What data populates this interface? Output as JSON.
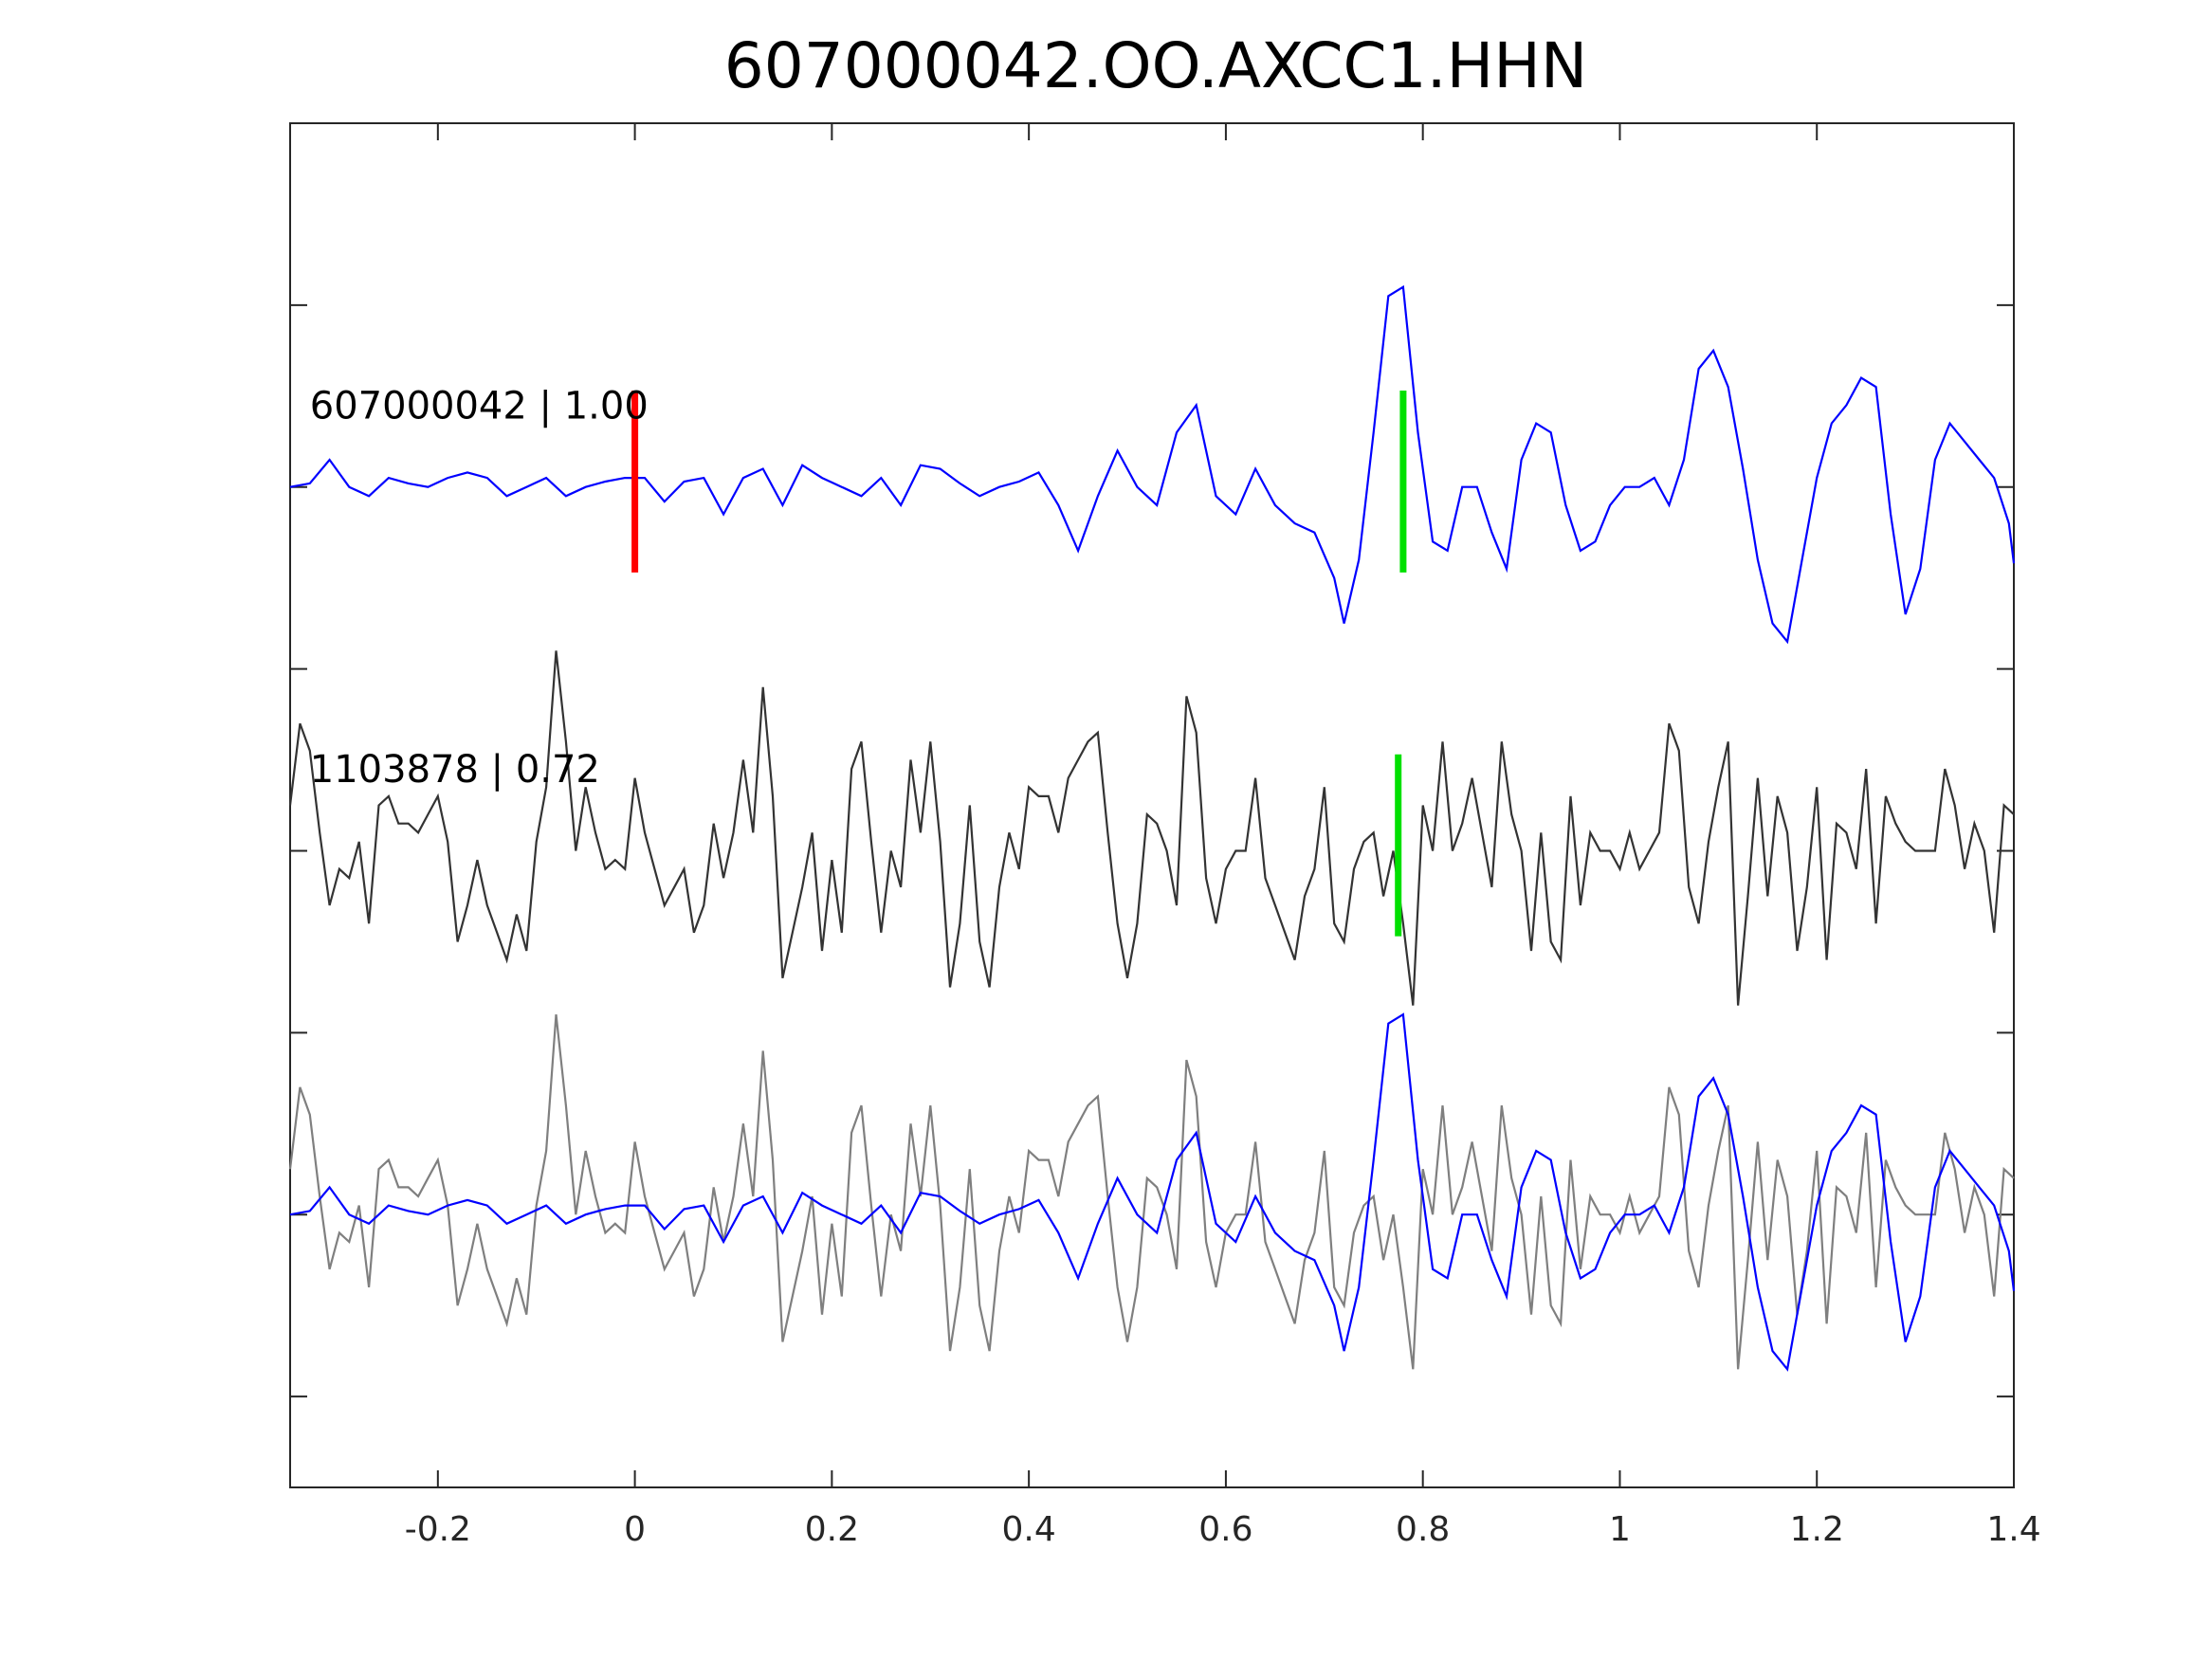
{
  "chart_data": {
    "type": "line",
    "title": "607000042.OO.AXCC1.HHN",
    "xlabel": "",
    "ylabel": "",
    "xlim": [
      -0.35,
      1.4
    ],
    "ylim": [
      0,
      7.5
    ],
    "x_ticks": [
      -0.2,
      0,
      0.2,
      0.4,
      0.6,
      0.8,
      1,
      1.2,
      1.4
    ],
    "x_tick_labels": [
      "-0.2",
      "0",
      "0.2",
      "0.4",
      "0.6",
      "0.8",
      "1",
      "1.2",
      "1.4"
    ],
    "y_ticks": [
      0.5,
      1.5,
      2.5,
      3.5,
      4.5,
      5.5,
      6.5
    ],
    "grid": false,
    "colors": {
      "template": "#0000ff",
      "neighbor": "#333333",
      "overlay_gray": "#7f7f7f",
      "pick_p": "#ff0000",
      "pick_s": "#00e000"
    },
    "trace_labels": [
      {
        "text": "607000042 | 1.00",
        "x": -0.33,
        "y": 5.95
      },
      {
        "text": "1103878 | 0.72",
        "x": -0.33,
        "y": 3.95
      }
    ],
    "picks": [
      {
        "x": 0.0,
        "y_from": 5.03,
        "y_to": 6.03,
        "color": "#ff0000"
      },
      {
        "x": 0.78,
        "y_from": 5.03,
        "y_to": 6.03,
        "color": "#00e000"
      },
      {
        "x": 0.775,
        "y_from": 3.03,
        "y_to": 4.03,
        "color": "#00e000"
      }
    ],
    "series": [
      {
        "role": "template",
        "baseline": 5.5,
        "color": "#0000ff",
        "points": [
          [
            -0.35,
            0
          ],
          [
            -0.33,
            0.02
          ],
          [
            -0.31,
            0.15
          ],
          [
            -0.29,
            0
          ],
          [
            -0.27,
            -0.05
          ],
          [
            -0.25,
            0.05
          ],
          [
            -0.23,
            0.02
          ],
          [
            -0.21,
            0.0
          ],
          [
            -0.19,
            0.05
          ],
          [
            -0.17,
            0.08
          ],
          [
            -0.15,
            0.05
          ],
          [
            -0.13,
            -0.05
          ],
          [
            -0.11,
            0.0
          ],
          [
            -0.09,
            0.05
          ],
          [
            -0.07,
            -0.05
          ],
          [
            -0.05,
            0.0
          ],
          [
            -0.03,
            0.03
          ],
          [
            -0.01,
            0.05
          ],
          [
            0.01,
            0.05
          ],
          [
            0.03,
            -0.08
          ],
          [
            0.05,
            0.03
          ],
          [
            0.07,
            0.05
          ],
          [
            0.09,
            -0.15
          ],
          [
            0.11,
            0.05
          ],
          [
            0.13,
            0.1
          ],
          [
            0.15,
            -0.1
          ],
          [
            0.17,
            0.12
          ],
          [
            0.19,
            0.05
          ],
          [
            0.21,
            0.0
          ],
          [
            0.23,
            -0.05
          ],
          [
            0.25,
            0.05
          ],
          [
            0.27,
            -0.1
          ],
          [
            0.29,
            0.12
          ],
          [
            0.31,
            0.1
          ],
          [
            0.33,
            0.02
          ],
          [
            0.35,
            -0.05
          ],
          [
            0.37,
            0.0
          ],
          [
            0.39,
            0.03
          ],
          [
            0.41,
            0.08
          ],
          [
            0.43,
            -0.1
          ],
          [
            0.45,
            -0.35
          ],
          [
            0.47,
            -0.05
          ],
          [
            0.49,
            0.2
          ],
          [
            0.51,
            0.0
          ],
          [
            0.53,
            -0.1
          ],
          [
            0.55,
            0.3
          ],
          [
            0.57,
            0.45
          ],
          [
            0.59,
            -0.05
          ],
          [
            0.61,
            -0.15
          ],
          [
            0.63,
            0.1
          ],
          [
            0.65,
            -0.1
          ],
          [
            0.67,
            -0.2
          ],
          [
            0.69,
            -0.25
          ],
          [
            0.71,
            -0.5
          ],
          [
            0.72,
            -0.75
          ],
          [
            0.735,
            -0.4
          ],
          [
            0.75,
            0.3
          ],
          [
            0.765,
            1.05
          ],
          [
            0.78,
            1.1
          ],
          [
            0.795,
            0.3
          ],
          [
            0.81,
            -0.3
          ],
          [
            0.825,
            -0.35
          ],
          [
            0.84,
            0.0
          ],
          [
            0.855,
            0.0
          ],
          [
            0.87,
            -0.25
          ],
          [
            0.885,
            -0.45
          ],
          [
            0.9,
            0.15
          ],
          [
            0.915,
            0.35
          ],
          [
            0.93,
            0.3
          ],
          [
            0.945,
            -0.1
          ],
          [
            0.96,
            -0.35
          ],
          [
            0.975,
            -0.3
          ],
          [
            0.99,
            -0.1
          ],
          [
            1.005,
            0.0
          ],
          [
            1.02,
            0.0
          ],
          [
            1.035,
            0.05
          ],
          [
            1.05,
            -0.1
          ],
          [
            1.065,
            0.15
          ],
          [
            1.08,
            0.65
          ],
          [
            1.095,
            0.75
          ],
          [
            1.11,
            0.55
          ],
          [
            1.125,
            0.1
          ],
          [
            1.14,
            -0.4
          ],
          [
            1.155,
            -0.75
          ],
          [
            1.17,
            -0.85
          ],
          [
            1.185,
            -0.4
          ],
          [
            1.2,
            0.05
          ],
          [
            1.215,
            0.35
          ],
          [
            1.23,
            0.45
          ],
          [
            1.245,
            0.6
          ],
          [
            1.26,
            0.55
          ],
          [
            1.275,
            -0.15
          ],
          [
            1.29,
            -0.7
          ],
          [
            1.305,
            -0.45
          ],
          [
            1.32,
            0.15
          ],
          [
            1.335,
            0.35
          ],
          [
            1.35,
            0.25
          ],
          [
            1.365,
            0.15
          ],
          [
            1.38,
            0.05
          ],
          [
            1.395,
            -0.2
          ],
          [
            1.4,
            -0.42
          ]
        ]
      },
      {
        "role": "neighbor",
        "baseline": 3.5,
        "color": "#333333",
        "points": [
          [
            -0.35,
            0.25
          ],
          [
            -0.34,
            0.7
          ],
          [
            -0.33,
            0.55
          ],
          [
            -0.32,
            0.1
          ],
          [
            -0.31,
            -0.3
          ],
          [
            -0.3,
            -0.1
          ],
          [
            -0.29,
            -0.15
          ],
          [
            -0.28,
            0.05
          ],
          [
            -0.27,
            -0.4
          ],
          [
            -0.26,
            0.25
          ],
          [
            -0.25,
            0.3
          ],
          [
            -0.24,
            0.15
          ],
          [
            -0.23,
            0.15
          ],
          [
            -0.22,
            0.1
          ],
          [
            -0.21,
            0.2
          ],
          [
            -0.2,
            0.3
          ],
          [
            -0.19,
            0.05
          ],
          [
            -0.18,
            -0.5
          ],
          [
            -0.17,
            -0.3
          ],
          [
            -0.16,
            -0.05
          ],
          [
            -0.15,
            -0.3
          ],
          [
            -0.14,
            -0.45
          ],
          [
            -0.13,
            -0.6
          ],
          [
            -0.12,
            -0.35
          ],
          [
            -0.11,
            -0.55
          ],
          [
            -0.1,
            0.05
          ],
          [
            -0.09,
            0.35
          ],
          [
            -0.08,
            1.1
          ],
          [
            -0.07,
            0.6
          ],
          [
            -0.06,
            0.0
          ],
          [
            -0.05,
            0.35
          ],
          [
            -0.04,
            0.1
          ],
          [
            -0.03,
            -0.1
          ],
          [
            -0.02,
            -0.05
          ],
          [
            -0.01,
            -0.1
          ],
          [
            0.0,
            0.4
          ],
          [
            0.01,
            0.1
          ],
          [
            0.02,
            -0.1
          ],
          [
            0.03,
            -0.3
          ],
          [
            0.04,
            -0.2
          ],
          [
            0.05,
            -0.1
          ],
          [
            0.06,
            -0.45
          ],
          [
            0.07,
            -0.3
          ],
          [
            0.08,
            0.15
          ],
          [
            0.09,
            -0.15
          ],
          [
            0.1,
            0.1
          ],
          [
            0.11,
            0.5
          ],
          [
            0.12,
            0.1
          ],
          [
            0.13,
            0.9
          ],
          [
            0.14,
            0.3
          ],
          [
            0.15,
            -0.7
          ],
          [
            0.16,
            -0.45
          ],
          [
            0.17,
            -0.2
          ],
          [
            0.18,
            0.1
          ],
          [
            0.19,
            -0.55
          ],
          [
            0.2,
            -0.05
          ],
          [
            0.21,
            -0.45
          ],
          [
            0.22,
            0.45
          ],
          [
            0.23,
            0.6
          ],
          [
            0.24,
            0.05
          ],
          [
            0.25,
            -0.45
          ],
          [
            0.26,
            0.0
          ],
          [
            0.27,
            -0.2
          ],
          [
            0.28,
            0.5
          ],
          [
            0.29,
            0.1
          ],
          [
            0.3,
            0.6
          ],
          [
            0.31,
            0.05
          ],
          [
            0.32,
            -0.75
          ],
          [
            0.33,
            -0.4
          ],
          [
            0.34,
            0.25
          ],
          [
            0.35,
            -0.5
          ],
          [
            0.36,
            -0.75
          ],
          [
            0.37,
            -0.2
          ],
          [
            0.38,
            0.1
          ],
          [
            0.39,
            -0.1
          ],
          [
            0.4,
            0.35
          ],
          [
            0.41,
            0.3
          ],
          [
            0.42,
            0.3
          ],
          [
            0.43,
            0.1
          ],
          [
            0.44,
            0.4
          ],
          [
            0.45,
            0.5
          ],
          [
            0.46,
            0.6
          ],
          [
            0.47,
            0.65
          ],
          [
            0.48,
            0.1
          ],
          [
            0.49,
            -0.4
          ],
          [
            0.5,
            -0.7
          ],
          [
            0.51,
            -0.4
          ],
          [
            0.52,
            0.2
          ],
          [
            0.53,
            0.15
          ],
          [
            0.54,
            0.0
          ],
          [
            0.55,
            -0.3
          ],
          [
            0.56,
            0.85
          ],
          [
            0.57,
            0.65
          ],
          [
            0.58,
            -0.15
          ],
          [
            0.59,
            -0.4
          ],
          [
            0.6,
            -0.1
          ],
          [
            0.61,
            0.0
          ],
          [
            0.62,
            0.0
          ],
          [
            0.63,
            0.4
          ],
          [
            0.64,
            -0.15
          ],
          [
            0.65,
            -0.3
          ],
          [
            0.66,
            -0.45
          ],
          [
            0.67,
            -0.6
          ],
          [
            0.68,
            -0.25
          ],
          [
            0.69,
            -0.1
          ],
          [
            0.7,
            0.35
          ],
          [
            0.71,
            -0.4
          ],
          [
            0.72,
            -0.5
          ],
          [
            0.73,
            -0.1
          ],
          [
            0.74,
            0.05
          ],
          [
            0.75,
            0.1
          ],
          [
            0.76,
            -0.25
          ],
          [
            0.77,
            0.0
          ],
          [
            0.78,
            -0.4
          ],
          [
            0.79,
            -0.85
          ],
          [
            0.8,
            0.25
          ],
          [
            0.81,
            0.0
          ],
          [
            0.82,
            0.6
          ],
          [
            0.83,
            0.0
          ],
          [
            0.84,
            0.15
          ],
          [
            0.85,
            0.4
          ],
          [
            0.86,
            0.1
          ],
          [
            0.87,
            -0.2
          ],
          [
            0.88,
            0.6
          ],
          [
            0.89,
            0.2
          ],
          [
            0.9,
            0.0
          ],
          [
            0.91,
            -0.55
          ],
          [
            0.92,
            0.1
          ],
          [
            0.93,
            -0.5
          ],
          [
            0.94,
            -0.6
          ],
          [
            0.95,
            0.3
          ],
          [
            0.96,
            -0.3
          ],
          [
            0.97,
            0.1
          ],
          [
            0.98,
            0.0
          ],
          [
            0.99,
            0.0
          ],
          [
            1.0,
            -0.1
          ],
          [
            1.01,
            0.1
          ],
          [
            1.02,
            -0.1
          ],
          [
            1.03,
            0.0
          ],
          [
            1.04,
            0.1
          ],
          [
            1.05,
            0.7
          ],
          [
            1.06,
            0.55
          ],
          [
            1.07,
            -0.2
          ],
          [
            1.08,
            -0.4
          ],
          [
            1.09,
            0.05
          ],
          [
            1.1,
            0.35
          ],
          [
            1.11,
            0.6
          ],
          [
            1.12,
            -0.85
          ],
          [
            1.13,
            -0.25
          ],
          [
            1.14,
            0.4
          ],
          [
            1.15,
            -0.25
          ],
          [
            1.16,
            0.3
          ],
          [
            1.17,
            0.1
          ],
          [
            1.18,
            -0.55
          ],
          [
            1.19,
            -0.2
          ],
          [
            1.2,
            0.35
          ],
          [
            1.21,
            -0.6
          ],
          [
            1.22,
            0.15
          ],
          [
            1.23,
            0.1
          ],
          [
            1.24,
            -0.1
          ],
          [
            1.25,
            0.45
          ],
          [
            1.26,
            -0.4
          ],
          [
            1.27,
            0.3
          ],
          [
            1.28,
            0.15
          ],
          [
            1.29,
            0.05
          ],
          [
            1.3,
            0.0
          ],
          [
            1.31,
            0.0
          ],
          [
            1.32,
            0.0
          ],
          [
            1.33,
            0.45
          ],
          [
            1.34,
            0.25
          ],
          [
            1.35,
            -0.1
          ],
          [
            1.36,
            0.15
          ],
          [
            1.37,
            0.0
          ],
          [
            1.38,
            -0.45
          ],
          [
            1.39,
            0.25
          ],
          [
            1.4,
            0.2
          ]
        ]
      }
    ]
  }
}
